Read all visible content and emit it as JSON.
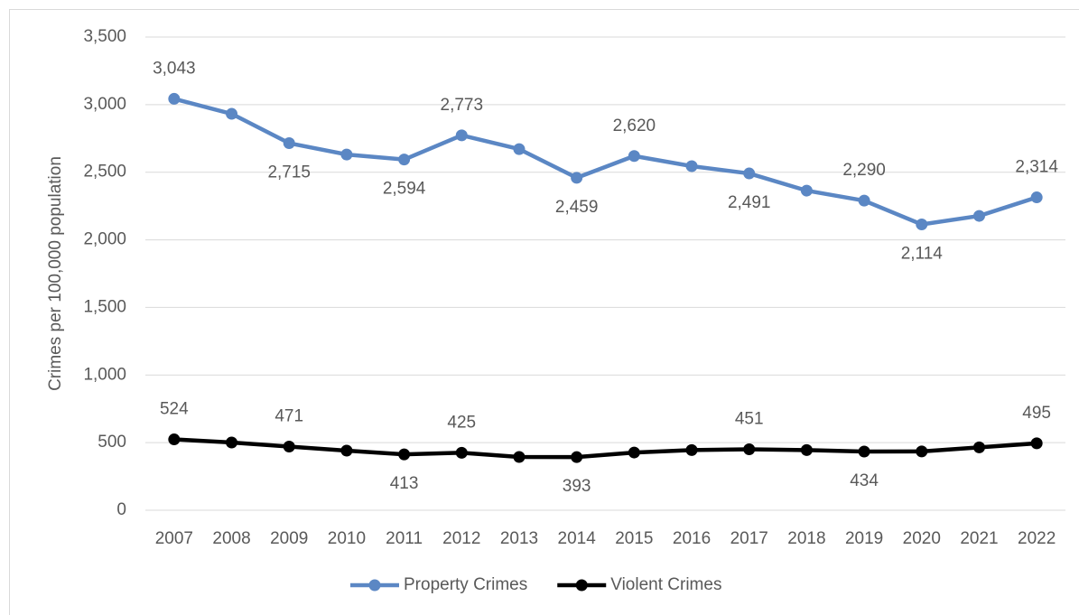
{
  "chart_data": {
    "type": "line",
    "y_label": "Crimes per 100,000 population",
    "categories": [
      "2007",
      "2008",
      "2009",
      "2010",
      "2011",
      "2012",
      "2013",
      "2014",
      "2015",
      "2016",
      "2017",
      "2018",
      "2019",
      "2020",
      "2021",
      "2022"
    ],
    "series": [
      {
        "name": "Property Crimes",
        "color": "#5b87c4",
        "values": [
          3043,
          2932,
          2715,
          2631,
          2594,
          2773,
          2671,
          2459,
          2620,
          2545,
          2491,
          2364,
          2290,
          2114,
          2177,
          2314
        ],
        "value_labels": [
          "3,043",
          null,
          "2,715",
          null,
          "2,594",
          "2,773",
          null,
          "2,459",
          "2,620",
          null,
          "2,491",
          null,
          "2,290",
          "2,114",
          null,
          "2,314"
        ]
      },
      {
        "name": "Violent Crimes",
        "color": "#000000",
        "values": [
          524,
          501,
          471,
          441,
          413,
          425,
          394,
          393,
          427,
          445,
          451,
          445,
          434,
          435,
          465,
          495
        ],
        "value_labels": [
          "524",
          null,
          "471",
          null,
          "413",
          "425",
          null,
          "393",
          null,
          null,
          "451",
          null,
          "434",
          null,
          null,
          "495"
        ]
      }
    ],
    "ylim": [
      0,
      3500
    ],
    "yticks": [
      {
        "value": 0,
        "label": "0"
      },
      {
        "value": 500,
        "label": "500"
      },
      {
        "value": 1000,
        "label": "1,000"
      },
      {
        "value": 1500,
        "label": "1,500"
      },
      {
        "value": 2000,
        "label": "2,000"
      },
      {
        "value": 2500,
        "label": "2,500"
      },
      {
        "value": 3000,
        "label": "3,000"
      },
      {
        "value": 3500,
        "label": "3,500"
      }
    ],
    "grid": true,
    "legend": "bottom"
  }
}
